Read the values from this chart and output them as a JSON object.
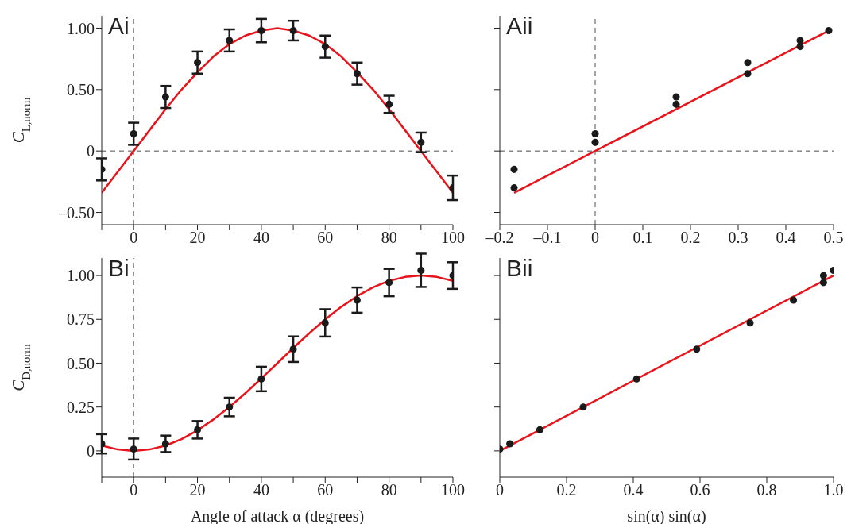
{
  "chart_data": [
    {
      "type": "scatter",
      "title": "Ai",
      "ylabel": "C$_{L,norm}$",
      "xlim": [
        -10,
        100
      ],
      "ylim": [
        -0.6,
        1.1
      ],
      "xticks": [
        {
          "value": -10,
          "label": null
        },
        0,
        {
          "value": 10,
          "label": null
        },
        20,
        {
          "value": 30,
          "label": null
        },
        40,
        {
          "value": 50,
          "label": null
        },
        60,
        {
          "value": 70,
          "label": null
        },
        80,
        {
          "value": 90,
          "label": null
        },
        100
      ],
      "yticks": [
        {
          "value": -0.5,
          "label": "–0.50"
        },
        0,
        {
          "value": 0.5,
          "label": "0.50"
        },
        {
          "value": 1,
          "label": "1.00"
        }
      ],
      "ref_lines": [
        {
          "axis": "x",
          "value": 0,
          "color": "#888888",
          "line_style": "dashed"
        },
        {
          "axis": "y",
          "value": 0,
          "color": "#888888",
          "line_style": "dashed"
        }
      ],
      "series": [
        {
          "type": "scatter",
          "color": "#1a1a1a",
          "marker": "circle",
          "x": [
            -10,
            0,
            10,
            20,
            30,
            40,
            50,
            60,
            70,
            80,
            90,
            100
          ],
          "values": [
            -0.15,
            0.14,
            0.44,
            0.72,
            0.9,
            0.98,
            0.98,
            0.85,
            0.63,
            0.38,
            0.07,
            -0.3
          ],
          "errors": [
            0.09,
            0.09,
            0.09,
            0.09,
            0.09,
            0.095,
            0.08,
            0.09,
            0.09,
            0.07,
            0.08,
            0.1
          ]
        },
        {
          "type": "line",
          "color": "#e8141c",
          "marker": "none",
          "x": [
            -10,
            -5,
            0,
            5,
            10,
            15,
            20,
            25,
            30,
            35,
            40,
            45,
            50,
            55,
            60,
            65,
            70,
            75,
            80,
            85,
            90,
            95,
            100
          ],
          "values": [
            -0.34,
            -0.17,
            0,
            0.17,
            0.34,
            0.5,
            0.64,
            0.77,
            0.87,
            0.94,
            0.98,
            1,
            0.98,
            0.94,
            0.87,
            0.77,
            0.64,
            0.5,
            0.34,
            0.17,
            0,
            -0.17,
            -0.34
          ]
        }
      ]
    },
    {
      "type": "scatter",
      "title": "Aii",
      "xlim": [
        -0.2,
        0.5
      ],
      "ylim": [
        -0.6,
        1.1
      ],
      "tick_labels": "x",
      "xticks": [
        {
          "value": -0.2,
          "label": "–0.2"
        },
        {
          "value": -0.1,
          "label": "–0.1"
        },
        0,
        0.1,
        0.2,
        0.3,
        0.4,
        0.5
      ],
      "yticks": [
        {
          "value": -0.5,
          "label": null
        },
        {
          "value": 0,
          "label": null
        },
        {
          "value": 0.5,
          "label": null
        },
        {
          "value": 1,
          "label": null
        }
      ],
      "ref_lines": [
        {
          "axis": "x",
          "value": 0,
          "color": "#888888",
          "line_style": "dashed"
        },
        {
          "axis": "y",
          "value": 0,
          "color": "#888888",
          "line_style": "dashed"
        }
      ],
      "series": [
        {
          "type": "scatter",
          "color": "#1a1a1a",
          "marker": "circle",
          "x": [
            -0.17,
            -0.17,
            0,
            0,
            0.17,
            0.17,
            0.32,
            0.32,
            0.43,
            0.43,
            0.49
          ],
          "values": [
            -0.15,
            -0.3,
            0.14,
            0.07,
            0.44,
            0.38,
            0.72,
            0.63,
            0.9,
            0.85,
            0.98
          ]
        },
        {
          "type": "line",
          "color": "#e8141c",
          "marker": "none",
          "x": [
            -0.17,
            0.49
          ],
          "values": [
            -0.34,
            0.98
          ]
        }
      ]
    },
    {
      "type": "scatter",
      "title": "Bi",
      "ylabel": "C$_{D,norm}$",
      "xlabel": "Angle of attack α (degrees)",
      "xlim": [
        -10,
        100
      ],
      "ylim": [
        -0.15,
        1.1
      ],
      "xticks": [
        {
          "value": -10,
          "label": null
        },
        0,
        {
          "value": 10,
          "label": null
        },
        20,
        {
          "value": 30,
          "label": null
        },
        40,
        {
          "value": 50,
          "label": null
        },
        60,
        {
          "value": 70,
          "label": null
        },
        80,
        {
          "value": 90,
          "label": null
        },
        100
      ],
      "yticks": [
        0,
        {
          "value": 0.25,
          "label": "0.25"
        },
        {
          "value": 0.5,
          "label": "0.50"
        },
        {
          "value": 0.75,
          "label": "0.75"
        },
        {
          "value": 1,
          "label": "1.00"
        }
      ],
      "ref_lines": [
        {
          "axis": "x",
          "value": 0,
          "color": "#888888",
          "line_style": "dashed"
        }
      ],
      "series": [
        {
          "type": "scatter",
          "color": "#1a1a1a",
          "marker": "circle",
          "x": [
            -10,
            0,
            10,
            20,
            30,
            40,
            50,
            60,
            70,
            80,
            90,
            100
          ],
          "values": [
            0.04,
            0.01,
            0.04,
            0.12,
            0.25,
            0.41,
            0.58,
            0.73,
            0.86,
            0.96,
            1.03,
            1
          ],
          "errors": [
            0.055,
            0.06,
            0.047,
            0.05,
            0.053,
            0.07,
            0.073,
            0.078,
            0.072,
            0.078,
            0.095,
            0.076
          ]
        },
        {
          "type": "line",
          "color": "#e8141c",
          "marker": "none",
          "x": [
            -10,
            -5,
            0,
            5,
            10,
            15,
            20,
            25,
            30,
            35,
            40,
            45,
            50,
            55,
            60,
            65,
            70,
            75,
            80,
            85,
            90,
            95,
            100
          ],
          "values": [
            0.03,
            0.008,
            0,
            0.008,
            0.03,
            0.067,
            0.117,
            0.179,
            0.25,
            0.329,
            0.413,
            0.5,
            0.587,
            0.671,
            0.75,
            0.821,
            0.883,
            0.933,
            0.97,
            0.992,
            1,
            0.992,
            0.97
          ]
        }
      ]
    },
    {
      "type": "scatter",
      "title": "Bii",
      "xlabel": "sin(α) sin(α)",
      "xlim": [
        0,
        1
      ],
      "ylim": [
        -0.15,
        1.1
      ],
      "tick_labels": "x",
      "xticks": [
        0,
        0.2,
        0.4,
        0.6,
        0.8,
        {
          "value": 1,
          "label": "1.0"
        }
      ],
      "yticks": [
        {
          "value": 0,
          "label": null
        },
        {
          "value": 0.25,
          "label": null
        },
        {
          "value": 0.5,
          "label": null
        },
        {
          "value": 0.75,
          "label": null
        },
        {
          "value": 1,
          "label": null
        }
      ],
      "series": [
        {
          "type": "scatter",
          "color": "#1a1a1a",
          "marker": "circle",
          "x": [
            0.03,
            0,
            0.12,
            0.25,
            0.41,
            0.59,
            0.75,
            0.88,
            0.97,
            1,
            0.97
          ],
          "values": [
            0.04,
            0.01,
            0.12,
            0.25,
            0.41,
            0.58,
            0.73,
            0.86,
            0.96,
            1.03,
            1
          ]
        },
        {
          "type": "line",
          "color": "#e8141c",
          "marker": "none",
          "x": [
            0,
            1
          ],
          "values": [
            0,
            1
          ]
        }
      ]
    }
  ]
}
